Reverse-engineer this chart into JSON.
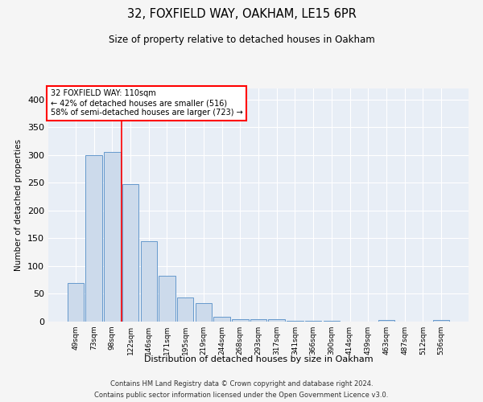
{
  "title1": "32, FOXFIELD WAY, OAKHAM, LE15 6PR",
  "title2": "Size of property relative to detached houses in Oakham",
  "xlabel": "Distribution of detached houses by size in Oakham",
  "ylabel": "Number of detached properties",
  "categories": [
    "49sqm",
    "73sqm",
    "98sqm",
    "122sqm",
    "146sqm",
    "171sqm",
    "195sqm",
    "219sqm",
    "244sqm",
    "268sqm",
    "293sqm",
    "317sqm",
    "341sqm",
    "366sqm",
    "390sqm",
    "414sqm",
    "439sqm",
    "463sqm",
    "487sqm",
    "512sqm",
    "536sqm"
  ],
  "values": [
    70,
    300,
    305,
    248,
    145,
    82,
    44,
    33,
    9,
    5,
    5,
    5,
    1,
    1,
    1,
    0,
    0,
    3,
    0,
    0,
    3
  ],
  "bar_color": "#ccdaeb",
  "bar_edge_color": "#6699cc",
  "bg_color": "#e8eef6",
  "grid_color": "#ffffff",
  "annotation_text": "32 FOXFIELD WAY: 110sqm\n← 42% of detached houses are smaller (516)\n58% of semi-detached houses are larger (723) →",
  "redline_x": 2.5,
  "footer1": "Contains HM Land Registry data © Crown copyright and database right 2024.",
  "footer2": "Contains public sector information licensed under the Open Government Licence v3.0.",
  "ylim": [
    0,
    420
  ],
  "yticks": [
    0,
    50,
    100,
    150,
    200,
    250,
    300,
    350,
    400
  ],
  "fig_bg": "#f5f5f5"
}
